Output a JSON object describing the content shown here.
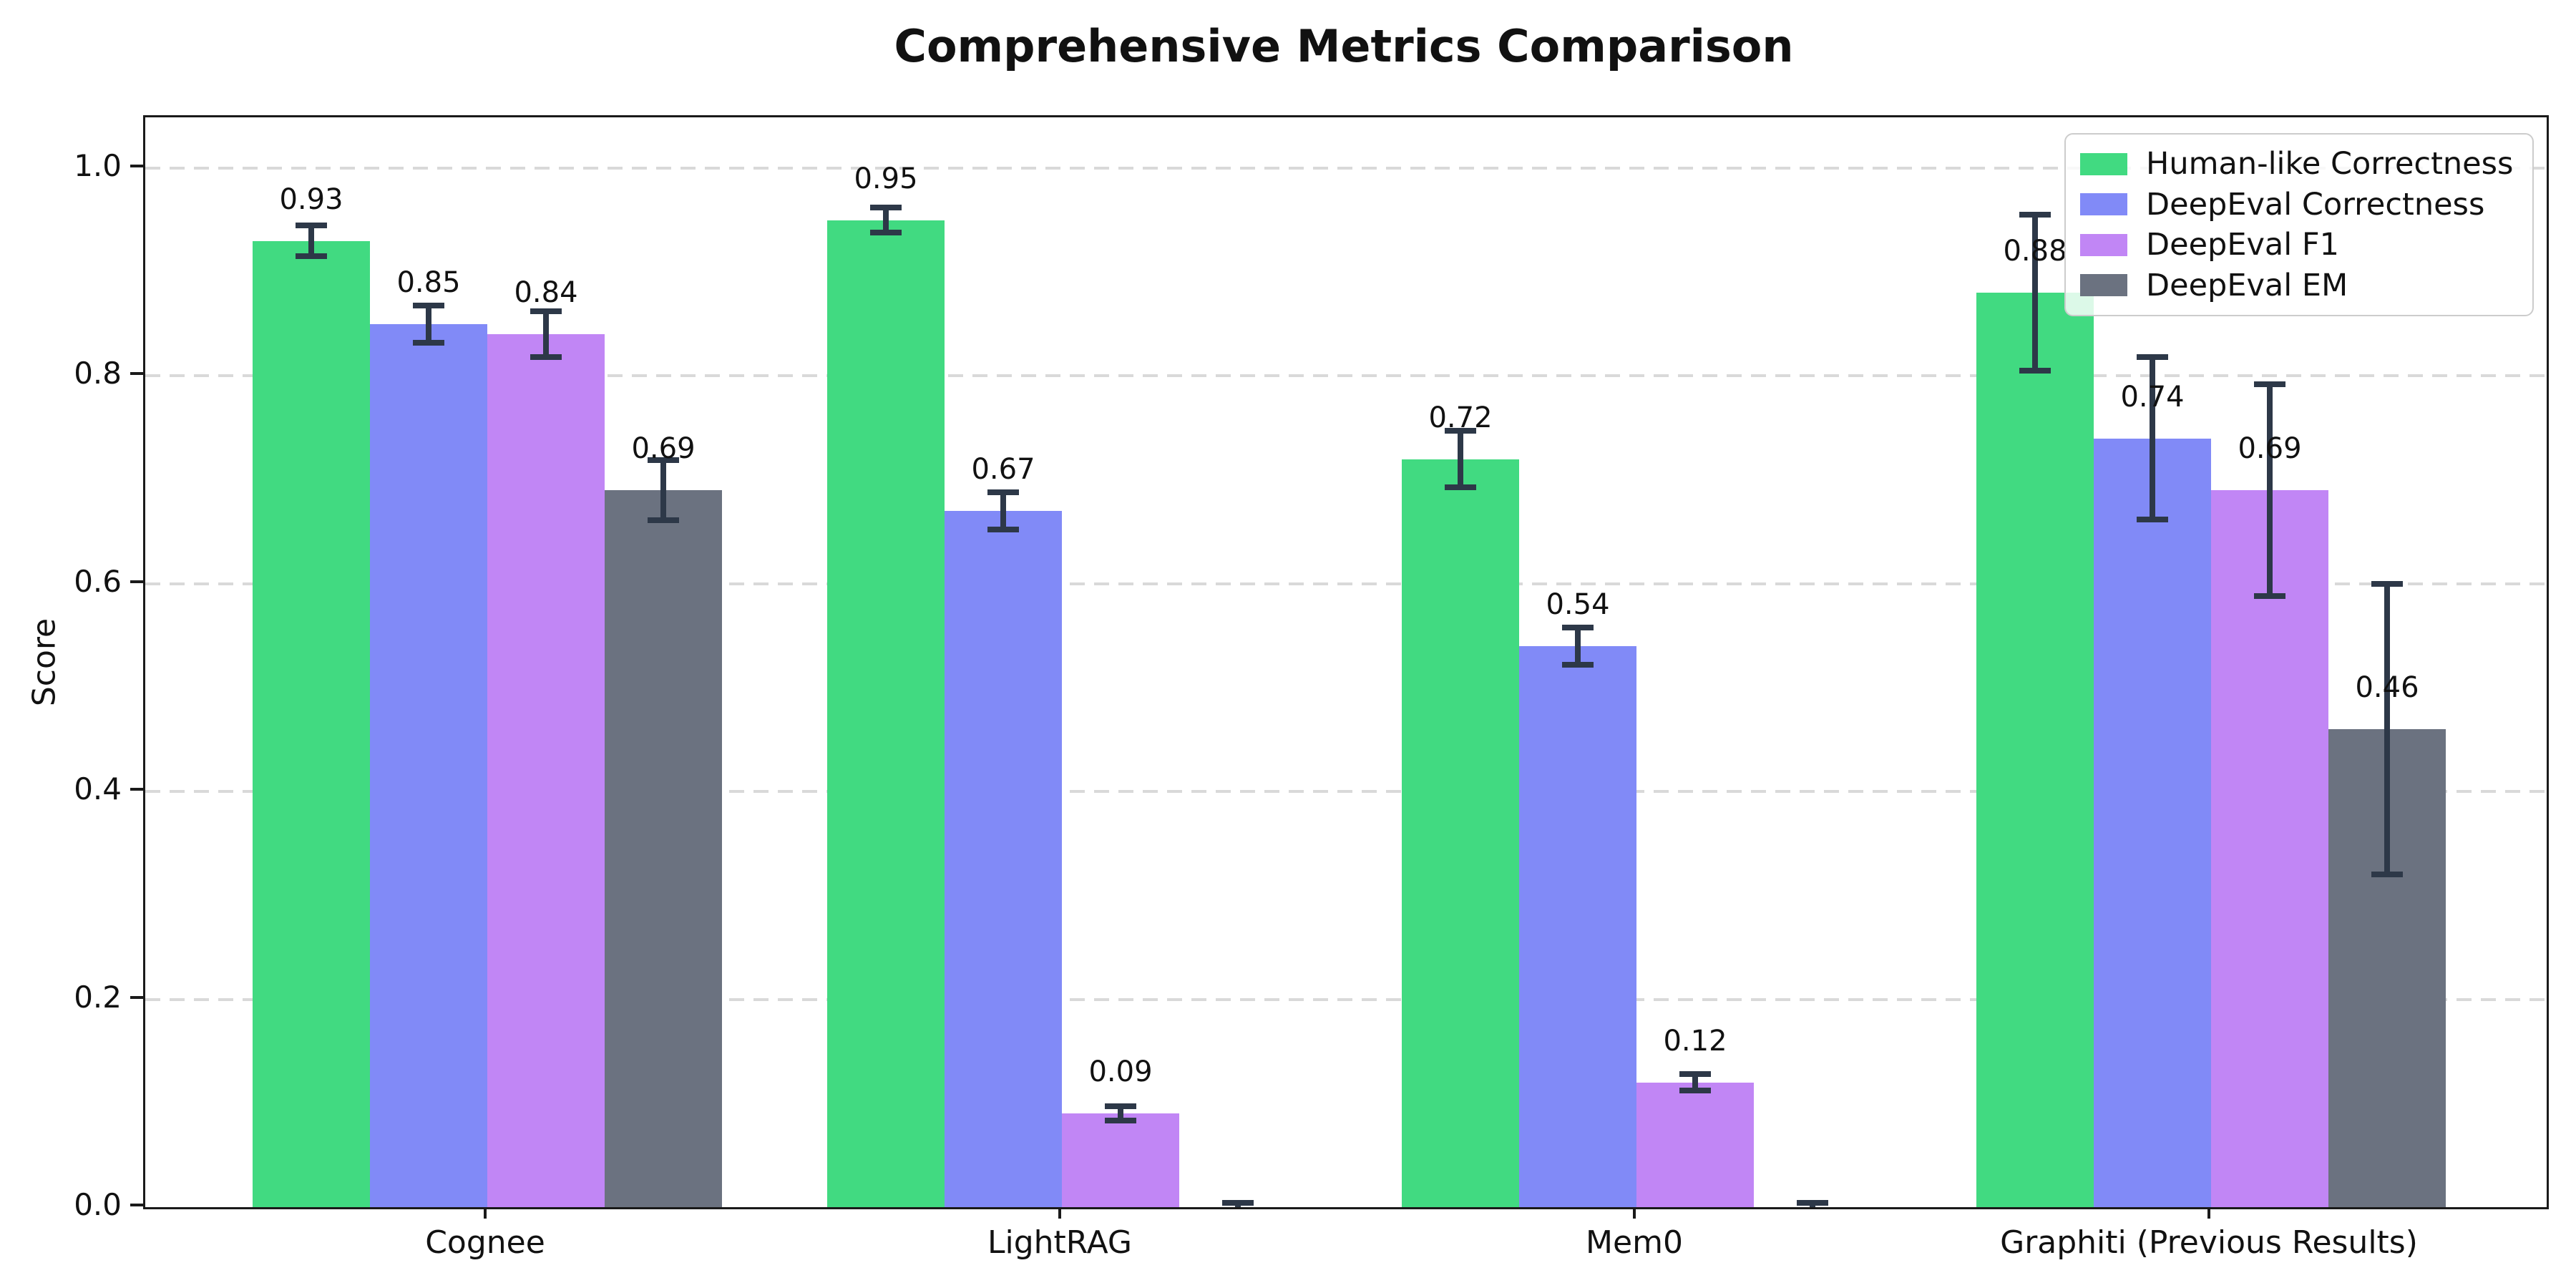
{
  "chart_data": {
    "type": "bar",
    "title": "Comprehensive Metrics Comparison",
    "xlabel": "",
    "ylabel": "Score",
    "categories": [
      "Cognee",
      "LightRAG",
      "Mem0",
      "Graphiti (Previous Results)"
    ],
    "series": [
      {
        "name": "Human-like Correctness",
        "color": "#41da81",
        "values": [
          0.93,
          0.95,
          0.72,
          0.88
        ],
        "errors": [
          0.015,
          0.012,
          0.027,
          0.075
        ],
        "labels": [
          "0.93",
          "0.95",
          "0.72",
          "0.88"
        ]
      },
      {
        "name": "DeepEval Correctness",
        "color": "#818af7",
        "values": [
          0.85,
          0.67,
          0.54,
          0.74
        ],
        "errors": [
          0.018,
          0.018,
          0.018,
          0.078
        ],
        "labels": [
          "0.85",
          "0.67",
          "0.54",
          "0.74"
        ]
      },
      {
        "name": "DeepEval F1",
        "color": "#c186f5",
        "values": [
          0.84,
          0.09,
          0.12,
          0.69
        ],
        "errors": [
          0.022,
          0.007,
          0.008,
          0.102
        ],
        "labels": [
          "0.84",
          "0.09",
          "0.12",
          "0.69"
        ]
      },
      {
        "name": "DeepEval EM",
        "color": "#6b7280",
        "values": [
          0.69,
          0.0,
          0.0,
          0.46
        ],
        "errors": [
          0.029,
          0.004,
          0.004,
          0.14
        ],
        "labels": [
          "0.69",
          "",
          "",
          "0.46"
        ]
      }
    ],
    "ytick_labels": [
      "0.0",
      "0.2",
      "0.4",
      "0.6",
      "0.8",
      "1.0"
    ],
    "ytick_values": [
      0.0,
      0.2,
      0.4,
      0.6,
      0.8,
      1.0
    ],
    "ylim": [
      0,
      1.049
    ],
    "grid": true,
    "grid_style": "dashed",
    "legend_position": "upper right",
    "colors": {
      "error_bar": "#2d3848",
      "grid": "#d9d9d9",
      "spine": "#1a1a1a",
      "text": "#111111",
      "legend_border": "#cccccc",
      "legend_background": "rgba(255,255,255,0.82)"
    }
  }
}
